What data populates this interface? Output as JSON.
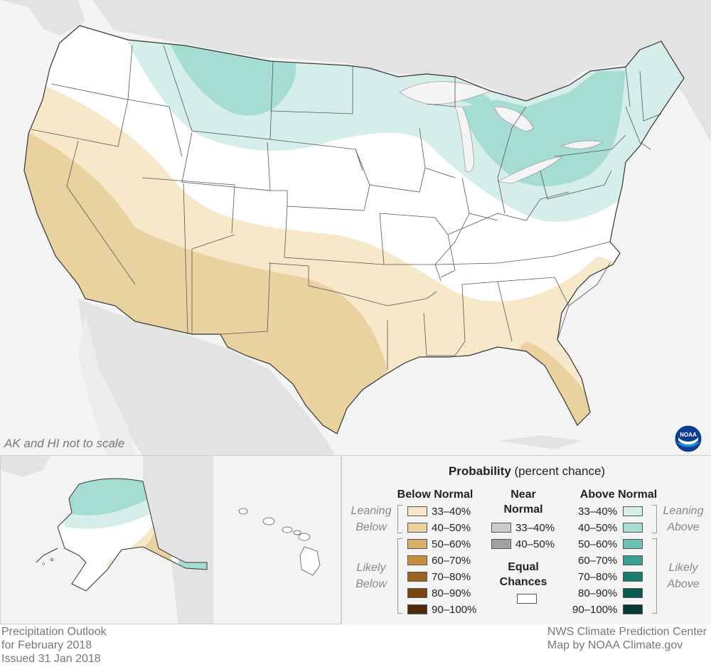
{
  "map": {
    "note": "AK and HI not to scale",
    "colors": {
      "land": "#ffffff",
      "background_land": "#e3e3e3",
      "water": "#f4f4f4",
      "below_33_40": "#f6e8c8",
      "below_40_50": "#ead2a0",
      "above_33_40": "#d5eeea",
      "above_40_50": "#a6ddd3"
    }
  },
  "legend": {
    "title_bold": "Probability",
    "title_rest": " (percent chance)",
    "below_normal": {
      "header": "Below Normal",
      "leaning_label": [
        "Leaning",
        "Below"
      ],
      "likely_label": [
        "Likely",
        "Below"
      ],
      "items": [
        {
          "label": "33–40%",
          "color": "#f6e8c8"
        },
        {
          "label": "40–50%",
          "color": "#ead2a0"
        },
        {
          "label": "50–60%",
          "color": "#d9b069"
        },
        {
          "label": "60–70%",
          "color": "#c58f3e"
        },
        {
          "label": "70–80%",
          "color": "#9c6220"
        },
        {
          "label": "80–90%",
          "color": "#774510"
        },
        {
          "label": "90–100%",
          "color": "#4d2b08"
        }
      ]
    },
    "near_normal": {
      "header": [
        "Near",
        "Normal"
      ],
      "items": [
        {
          "label": "33–40%",
          "color": "#cccccc"
        },
        {
          "label": "40–50%",
          "color": "#a2a2a2"
        }
      ]
    },
    "equal_chances": {
      "header": [
        "Equal",
        "Chances"
      ],
      "color": "#ffffff"
    },
    "above_normal": {
      "header": "Above Normal",
      "leaning_label": [
        "Leaning",
        "Above"
      ],
      "likely_label": [
        "Likely",
        "Above"
      ],
      "items": [
        {
          "label": "33–40%",
          "color": "#d5eeea"
        },
        {
          "label": "40–50%",
          "color": "#a6ddd3"
        },
        {
          "label": "50–60%",
          "color": "#6cc2b4"
        },
        {
          "label": "60–70%",
          "color": "#3aa092"
        },
        {
          "label": "70–80%",
          "color": "#1a7c6e"
        },
        {
          "label": "80–90%",
          "color": "#0c5a4f"
        },
        {
          "label": "90–100%",
          "color": "#053b33"
        }
      ]
    }
  },
  "footer": {
    "left": [
      "Precipitation Outlook",
      "for February 2018",
      "Issued 31 Jan 2018"
    ],
    "right": [
      "NWS Climate Prediction Center",
      "Map by NOAA Climate.gov"
    ]
  },
  "logo": {
    "text": "NOAA"
  }
}
